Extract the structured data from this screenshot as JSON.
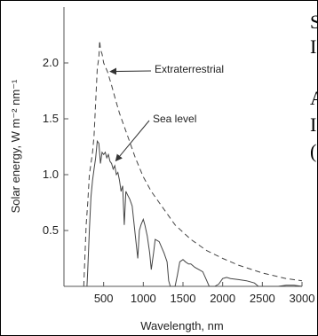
{
  "chart_data": {
    "type": "line",
    "title": "",
    "xlabel": "Wavelength, nm",
    "ylabel": "Solar energy, W m⁻² nm⁻¹",
    "xlim": [
      0,
      3000
    ],
    "ylim": [
      0,
      2.5
    ],
    "x_ticks": [
      500,
      1000,
      1500,
      2000,
      2500,
      3000
    ],
    "y_ticks": [
      0.5,
      1.0,
      1.5,
      2.0
    ],
    "x_tick_labels": [
      "500",
      "1000",
      "1500",
      "2000",
      "2500",
      "3000"
    ],
    "y_tick_labels": [
      "0.5",
      "1.0",
      "1.5",
      "2.0"
    ],
    "grid": false,
    "legend": "none",
    "series": [
      {
        "name": "Extraterrestrial",
        "style": "dashed",
        "color": "#444444",
        "x": [
          250,
          280,
          300,
          320,
          340,
          360,
          380,
          400,
          420,
          440,
          450,
          460,
          480,
          500,
          550,
          600,
          650,
          700,
          750,
          800,
          900,
          1000,
          1100,
          1200,
          1400,
          1600,
          1800,
          2000,
          2200,
          2500,
          2800,
          3000
        ],
        "y": [
          0.0,
          0.55,
          0.75,
          1.0,
          1.1,
          1.2,
          1.35,
          1.65,
          1.95,
          2.05,
          2.2,
          2.12,
          2.08,
          2.0,
          1.92,
          1.8,
          1.67,
          1.55,
          1.45,
          1.35,
          1.15,
          0.98,
          0.85,
          0.75,
          0.55,
          0.42,
          0.32,
          0.25,
          0.19,
          0.12,
          0.07,
          0.05
        ]
      },
      {
        "name": "Sea level",
        "style": "solid",
        "color": "#444444",
        "x": [
          290,
          300,
          320,
          340,
          360,
          380,
          400,
          420,
          440,
          460,
          480,
          500,
          520,
          540,
          560,
          580,
          600,
          620,
          640,
          660,
          680,
          700,
          720,
          740,
          760,
          780,
          800,
          830,
          860,
          900,
          930,
          950,
          970,
          1000,
          1020,
          1050,
          1080,
          1100,
          1130,
          1150,
          1200,
          1230,
          1260,
          1300,
          1320,
          1340,
          1360,
          1380,
          1400,
          1430,
          1460,
          1500,
          1530,
          1570,
          1600,
          1650,
          1700,
          1750,
          1800,
          1830,
          1850,
          1900,
          1950,
          2000,
          2050,
          2100,
          2200,
          2300,
          2400,
          2450,
          2500,
          2600,
          2700,
          2800,
          2900,
          3000
        ],
        "y": [
          0.0,
          0.15,
          0.5,
          0.8,
          0.95,
          1.05,
          1.15,
          1.3,
          1.28,
          1.1,
          1.2,
          1.18,
          1.2,
          1.15,
          1.18,
          1.12,
          1.1,
          1.05,
          1.08,
          1.0,
          1.02,
          0.95,
          0.85,
          0.9,
          0.55,
          0.85,
          0.82,
          0.78,
          0.72,
          0.45,
          0.25,
          0.5,
          0.55,
          0.6,
          0.55,
          0.45,
          0.3,
          0.15,
          0.3,
          0.42,
          0.4,
          0.35,
          0.3,
          0.22,
          0.05,
          0.0,
          0.0,
          0.0,
          0.0,
          0.1,
          0.22,
          0.24,
          0.22,
          0.2,
          0.2,
          0.17,
          0.15,
          0.13,
          0.05,
          0.0,
          0.0,
          0.0,
          0.02,
          0.07,
          0.08,
          0.07,
          0.06,
          0.05,
          0.03,
          0.0,
          0.0,
          0.0,
          0.0,
          0.01,
          0.01,
          0.0
        ]
      }
    ],
    "annotations": [
      {
        "text": "Extraterrestrial",
        "points_to": {
          "x": 550,
          "y": 1.9
        }
      },
      {
        "text": "Sea level",
        "points_to": {
          "x": 620,
          "y": 1.1
        }
      }
    ]
  },
  "side_text_lines": [
    "S",
    "I",
    "",
    "A",
    "I",
    "("
  ]
}
